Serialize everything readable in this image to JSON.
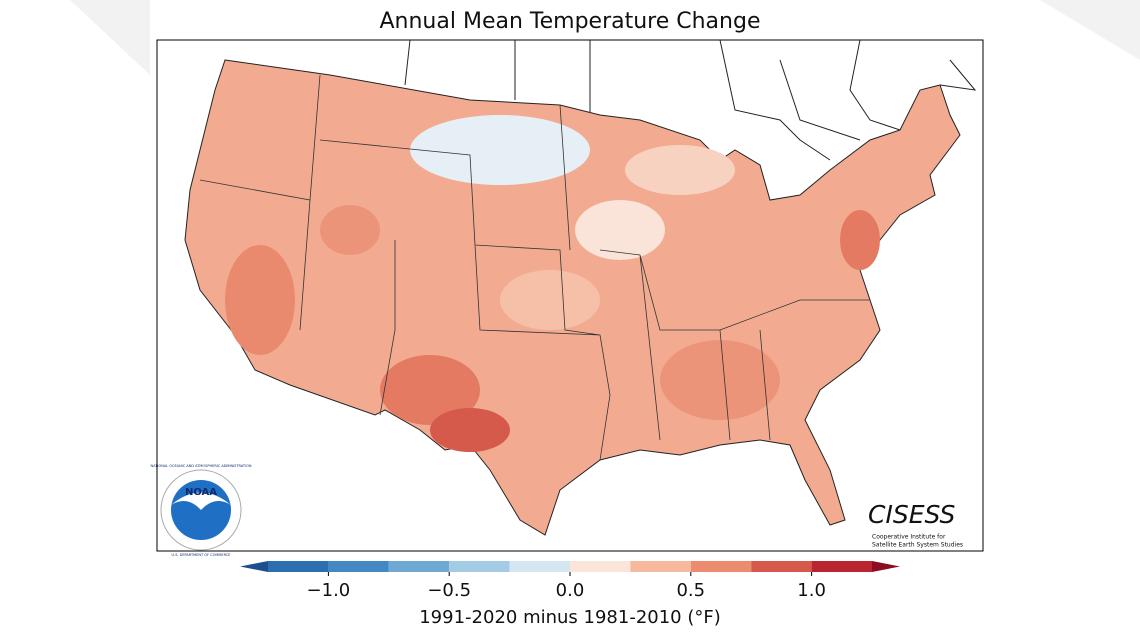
{
  "title": "Annual Mean Temperature Change",
  "colorbar": {
    "label": "1991-2020 minus 1981-2010 (°F)",
    "levels": [
      -1.25,
      -1.0,
      -0.75,
      -0.5,
      -0.25,
      0,
      0.25,
      0.5,
      0.75,
      1.0,
      1.25
    ],
    "colors": [
      "#2c6fb0",
      "#4288c2",
      "#6ea8d3",
      "#a3cbe4",
      "#d4e7f1",
      "#fbe4d8",
      "#f6b99d",
      "#eb8c6f",
      "#d65a4b",
      "#b9262f"
    ],
    "extend_colors": [
      "#1c4f90",
      "#8c0c21"
    ],
    "ticks": [
      {
        "value": -1.0,
        "label": "−1.0"
      },
      {
        "value": -0.5,
        "label": "−0.5"
      },
      {
        "value": 0,
        "label": "0.0"
      },
      0.5,
      {
        "value": 1.0,
        "label": "1.0"
      }
    ]
  },
  "noaa_logo": {
    "name": "NOAA",
    "ring_top": "NATIONAL OCEANIC AND ATMOSPHERIC ADMINISTRATION",
    "ring_bottom": "U.S. DEPARTMENT OF COMMERCE"
  },
  "cisess_logo": {
    "name": "CISESS",
    "line1": "Cooperative Institute for",
    "line2": "Satellite Earth System Studies"
  }
}
